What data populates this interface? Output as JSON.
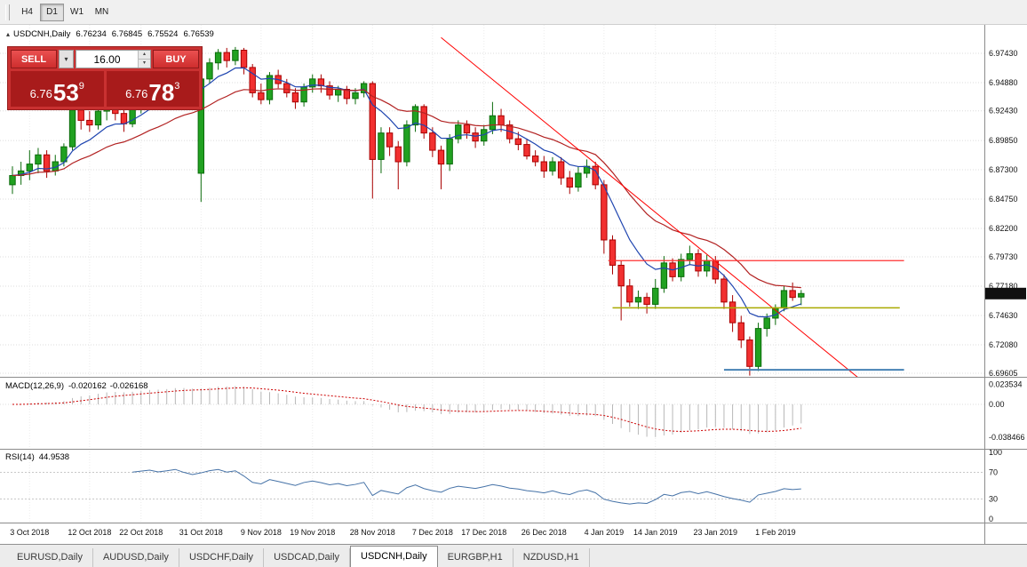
{
  "toolbar": {
    "timeframes": [
      {
        "label": "H4",
        "active": false
      },
      {
        "label": "D1",
        "active": true
      },
      {
        "label": "W1",
        "active": false
      },
      {
        "label": "MN",
        "active": false
      }
    ]
  },
  "chart": {
    "symbol_period": "USDCNH,Daily",
    "open": "6.76234",
    "high": "6.76845",
    "low": "6.75524",
    "close": "6.76539"
  },
  "trade_panel": {
    "sell_label": "SELL",
    "buy_label": "BUY",
    "volume": "16.00",
    "sell_price": {
      "base": "6.76",
      "big": "53",
      "sup": "9"
    },
    "buy_price": {
      "base": "6.76",
      "big": "78",
      "sup": "3"
    }
  },
  "macd": {
    "name": "MACD(12,26,9)",
    "value_main": "-0.020162",
    "value_signal": "-0.026168"
  },
  "rsi": {
    "name": "RSI(14)",
    "value": "44.9538"
  },
  "price_axis": {
    "labels": [
      "6.97430",
      "6.94880",
      "6.92430",
      "6.89850",
      "6.87300",
      "6.84750",
      "6.82200",
      "6.79730",
      "6.77180",
      "6.74630",
      "6.72080",
      "6.69605"
    ],
    "current": "6.76539"
  },
  "icons": {
    "chart_icon": "▴",
    "dropdown_arrow": "▾",
    "spin_up": "▴",
    "spin_down": "▾"
  },
  "tab_bar": {
    "tabs": [
      {
        "label": "EURUSD,Daily",
        "active": false
      },
      {
        "label": "AUDUSD,Daily",
        "active": false
      },
      {
        "label": "USDCHF,Daily",
        "active": false
      },
      {
        "label": "USDCAD,Daily",
        "active": false
      },
      {
        "label": "USDCNH,Daily",
        "active": true
      },
      {
        "label": "EURGBP,H1",
        "active": false
      },
      {
        "label": "NZDUSD,H1",
        "active": false
      }
    ]
  },
  "chart_data": {
    "type": "candlestick",
    "symbol": "USDCNH",
    "period": "Daily",
    "price_scale": {
      "max_price": 6.9743,
      "min_price": 6.69605
    },
    "colors": {
      "bull": "#21A121",
      "bull_border": "#0B6B0B",
      "bear": "#F23030",
      "bear_border": "#A80000"
    },
    "candles": [
      [
        6.86,
        6.876,
        6.852,
        6.868
      ],
      [
        6.868,
        6.88,
        6.86,
        6.872
      ],
      [
        6.872,
        6.89,
        6.864,
        6.878
      ],
      [
        6.878,
        6.892,
        6.87,
        6.886
      ],
      [
        6.886,
        6.89,
        6.866,
        6.872
      ],
      [
        6.872,
        6.886,
        6.868,
        6.88
      ],
      [
        6.88,
        6.896,
        6.876,
        6.893
      ],
      [
        6.893,
        6.928,
        6.89,
        6.925
      ],
      [
        6.925,
        6.93,
        6.908,
        6.916
      ],
      [
        6.916,
        6.924,
        6.906,
        6.912
      ],
      [
        6.912,
        6.928,
        6.908,
        6.924
      ],
      [
        6.924,
        6.934,
        6.916,
        6.93
      ],
      [
        6.93,
        6.934,
        6.916,
        6.922
      ],
      [
        6.922,
        6.928,
        6.906,
        6.913
      ],
      [
        6.913,
        6.93,
        6.91,
        6.928
      ],
      [
        6.928,
        6.94,
        6.922,
        6.936
      ],
      [
        6.936,
        6.946,
        6.93,
        6.943
      ],
      [
        6.943,
        6.948,
        6.932,
        6.938
      ],
      [
        6.938,
        6.95,
        6.934,
        6.946
      ],
      [
        6.946,
        6.96,
        6.94,
        6.956
      ],
      [
        6.956,
        6.96,
        6.942,
        6.948
      ],
      [
        6.948,
        6.952,
        6.934,
        6.942
      ],
      [
        6.87,
        6.958,
        6.845,
        6.952
      ],
      [
        6.952,
        6.97,
        6.948,
        6.966
      ],
      [
        6.966,
        6.978,
        6.96,
        6.975
      ],
      [
        6.975,
        6.979,
        6.962,
        6.968
      ],
      [
        6.968,
        6.9798,
        6.964,
        6.977
      ],
      [
        6.977,
        6.979,
        6.956,
        6.962
      ],
      [
        6.962,
        6.965,
        6.936,
        6.94
      ],
      [
        6.94,
        6.948,
        6.93,
        6.934
      ],
      [
        6.934,
        6.958,
        6.93,
        6.955
      ],
      [
        6.955,
        6.96,
        6.944,
        6.948
      ],
      [
        6.948,
        6.952,
        6.936,
        6.94
      ],
      [
        6.94,
        6.944,
        6.926,
        6.932
      ],
      [
        6.932,
        6.948,
        6.928,
        6.945
      ],
      [
        6.945,
        6.956,
        6.94,
        6.952
      ],
      [
        6.952,
        6.956,
        6.94,
        6.946
      ],
      [
        6.946,
        6.95,
        6.934,
        6.938
      ],
      [
        6.938,
        6.946,
        6.932,
        6.943
      ],
      [
        6.943,
        6.946,
        6.93,
        6.935
      ],
      [
        6.935,
        6.944,
        6.93,
        6.94
      ],
      [
        6.94,
        6.95,
        6.936,
        6.948
      ],
      [
        6.948,
        6.95,
        6.848,
        6.882
      ],
      [
        6.882,
        6.91,
        6.87,
        6.905
      ],
      [
        6.905,
        6.91,
        6.885,
        6.893
      ],
      [
        6.893,
        6.898,
        6.856,
        6.88
      ],
      [
        6.88,
        6.916,
        6.876,
        6.912
      ],
      [
        6.912,
        6.93,
        6.906,
        6.928
      ],
      [
        6.928,
        6.93,
        6.9,
        6.905
      ],
      [
        6.905,
        6.91,
        6.884,
        6.89
      ],
      [
        6.89,
        6.894,
        6.856,
        6.878
      ],
      [
        6.878,
        6.904,
        6.872,
        6.9
      ],
      [
        6.9,
        6.916,
        6.896,
        6.912
      ],
      [
        6.912,
        6.916,
        6.9,
        6.905
      ],
      [
        6.905,
        6.91,
        6.892,
        6.898
      ],
      [
        6.898,
        6.912,
        6.894,
        6.908
      ],
      [
        6.908,
        6.932,
        6.904,
        6.92
      ],
      [
        6.92,
        6.926,
        6.906,
        6.912
      ],
      [
        6.912,
        6.916,
        6.896,
        6.9
      ],
      [
        6.9,
        6.906,
        6.89,
        6.895
      ],
      [
        6.895,
        6.9,
        6.882,
        6.885
      ],
      [
        6.885,
        6.89,
        6.876,
        6.88
      ],
      [
        6.88,
        6.885,
        6.866,
        6.872
      ],
      [
        6.872,
        6.884,
        6.868,
        6.88
      ],
      [
        6.88,
        6.884,
        6.86,
        6.866
      ],
      [
        6.866,
        6.872,
        6.852,
        6.858
      ],
      [
        6.858,
        6.876,
        6.854,
        6.87
      ],
      [
        6.87,
        6.882,
        6.866,
        6.876
      ],
      [
        6.876,
        6.88,
        6.856,
        6.86
      ],
      [
        6.86,
        6.864,
        6.8,
        6.812
      ],
      [
        6.812,
        6.816,
        6.782,
        6.79
      ],
      [
        6.79,
        6.794,
        6.742,
        6.772
      ],
      [
        6.772,
        6.778,
        6.754,
        6.758
      ],
      [
        6.758,
        6.768,
        6.752,
        6.762
      ],
      [
        6.762,
        6.766,
        6.748,
        6.756
      ],
      [
        6.756,
        6.778,
        6.752,
        6.77
      ],
      [
        6.77,
        6.798,
        6.766,
        6.792
      ],
      [
        6.792,
        6.796,
        6.776,
        6.78
      ],
      [
        6.78,
        6.8,
        6.776,
        6.795
      ],
      [
        6.795,
        6.807,
        6.79,
        6.8
      ],
      [
        6.8,
        6.804,
        6.78,
        6.785
      ],
      [
        6.785,
        6.799,
        6.78,
        6.794
      ],
      [
        6.794,
        6.798,
        6.774,
        6.778
      ],
      [
        6.778,
        6.782,
        6.752,
        6.758
      ],
      [
        6.758,
        6.764,
        6.732,
        6.74
      ],
      [
        6.74,
        6.746,
        6.718,
        6.725
      ],
      [
        6.725,
        6.728,
        6.694,
        6.702
      ],
      [
        6.702,
        6.74,
        6.698,
        6.735
      ],
      [
        6.735,
        6.748,
        6.728,
        6.744
      ],
      [
        6.744,
        6.756,
        6.738,
        6.753
      ],
      [
        6.753,
        6.772,
        6.75,
        6.768
      ],
      [
        6.768,
        6.775,
        6.759,
        6.762
      ],
      [
        6.76234,
        6.76845,
        6.75524,
        6.76539
      ]
    ],
    "date_ticks": [
      {
        "label": "3 Oct 2018",
        "index": 2
      },
      {
        "label": "12 Oct 2018",
        "index": 9
      },
      {
        "label": "22 Oct 2018",
        "index": 15
      },
      {
        "label": "31 Oct 2018",
        "index": 22
      },
      {
        "label": "9 Nov 2018",
        "index": 29
      },
      {
        "label": "19 Nov 2018",
        "index": 35
      },
      {
        "label": "28 Nov 2018",
        "index": 42
      },
      {
        "label": "7 Dec 2018",
        "index": 49
      },
      {
        "label": "17 Dec 2018",
        "index": 55
      },
      {
        "label": "26 Dec 2018",
        "index": 62
      },
      {
        "label": "4 Jan 2019",
        "index": 69
      },
      {
        "label": "14 Jan 2019",
        "index": 75
      },
      {
        "label": "23 Jan 2019",
        "index": 82
      },
      {
        "label": "1 Feb 2019",
        "index": 89
      }
    ],
    "moving_averages": [
      {
        "period": 8,
        "method": "ema",
        "color": "#1F45B0"
      },
      {
        "period": 20,
        "method": "ema",
        "color": "#B22222"
      }
    ],
    "objects": [
      {
        "type": "trendline",
        "color": "#FF0000",
        "from": {
          "index": 50,
          "price": 6.988
        },
        "to": {
          "index": 100,
          "price": 6.684
        }
      },
      {
        "type": "hline",
        "color": "#FF3030",
        "price": 6.794,
        "from_index": 69.5,
        "to_index": 104,
        "width": 1.2
      },
      {
        "type": "hline",
        "color": "#AAAA00",
        "price": 6.753,
        "from_index": 70,
        "to_index": 103.5,
        "width": 1.5
      },
      {
        "type": "hline",
        "color": "#4682B4",
        "price": 6.699,
        "from_index": 83,
        "to_index": 104,
        "width": 2
      }
    ],
    "indicators": {
      "macd": {
        "fast": 12,
        "slow": 26,
        "signal": 9,
        "hist_color": "#b8b8b8",
        "signal_color": "#CC0000",
        "axis": [
          "0.023534",
          "0.00",
          "-0.038466"
        ]
      },
      "rsi": {
        "period": 14,
        "color": "#4572A7",
        "levels": [
          70,
          30
        ],
        "axis": [
          "100",
          "70",
          "30",
          "0"
        ]
      }
    }
  }
}
